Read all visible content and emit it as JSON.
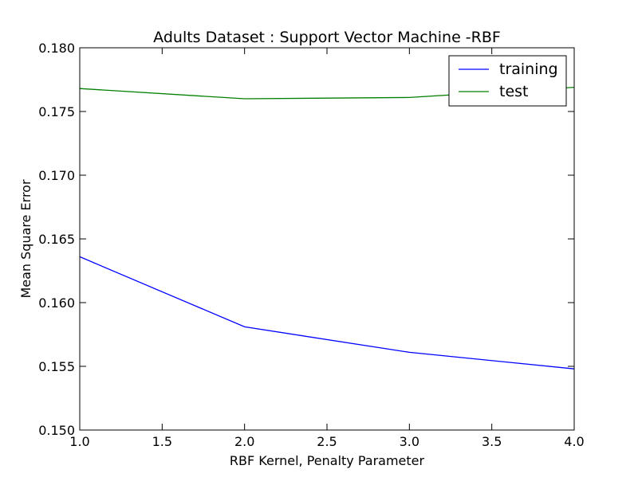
{
  "chart_data": {
    "type": "line",
    "title": "Adults Dataset : Support Vector Machine -RBF",
    "xlabel": "RBF Kernel, Penalty Parameter",
    "ylabel": "Mean Square Error",
    "xlim": [
      1.0,
      4.0
    ],
    "ylim": [
      0.15,
      0.18
    ],
    "xticks": [
      "1.0",
      "1.5",
      "2.0",
      "2.5",
      "3.0",
      "3.5",
      "4.0"
    ],
    "yticks": [
      "0.150",
      "0.155",
      "0.160",
      "0.165",
      "0.170",
      "0.175",
      "0.180"
    ],
    "grid": false,
    "legend_position": "top-right",
    "series": [
      {
        "name": "training",
        "color": "#0000ff",
        "x": [
          1,
          2,
          3,
          4
        ],
        "y": [
          0.1636,
          0.1581,
          0.1561,
          0.1548
        ]
      },
      {
        "name": "test",
        "color": "#008000",
        "x": [
          1,
          2,
          3,
          4
        ],
        "y": [
          0.1768,
          0.176,
          0.1761,
          0.1769
        ]
      }
    ]
  }
}
